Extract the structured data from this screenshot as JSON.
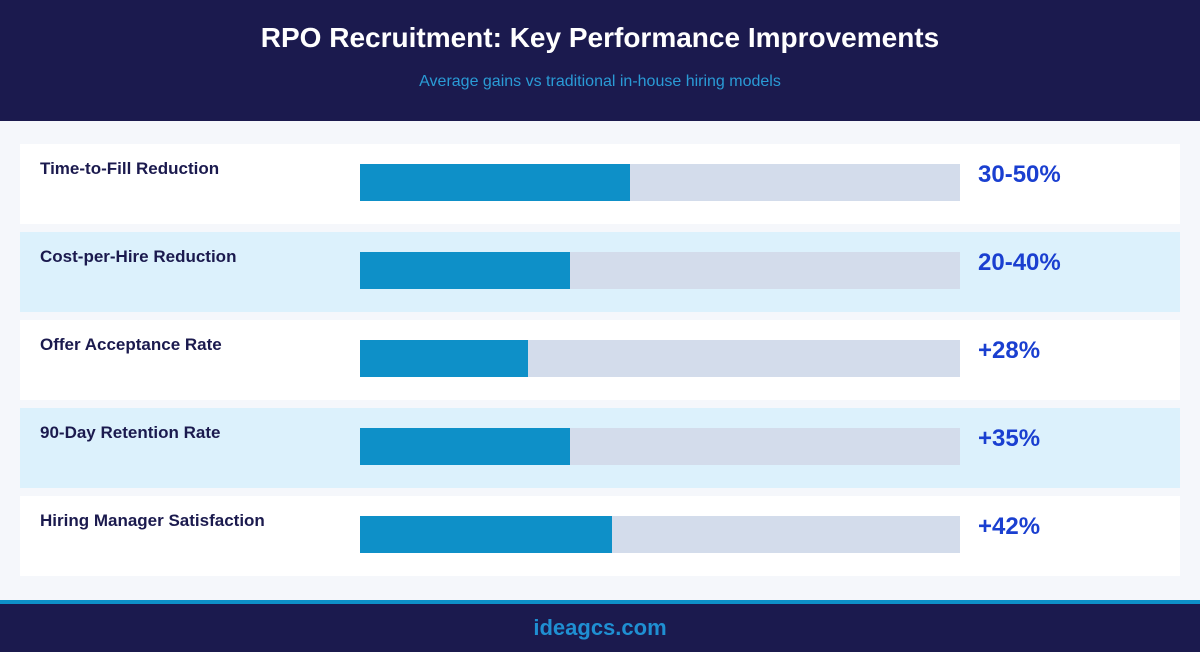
{
  "header": {
    "title": "RPO Recruitment: Key Performance Improvements",
    "subtitle": "Average gains vs traditional in-house hiring models"
  },
  "chart_data": {
    "type": "bar",
    "title": "RPO Recruitment: Key Performance Improvements",
    "subtitle": "Average gains vs traditional in-house hiring models",
    "categories": [
      "Time-to-Fill Reduction",
      "Cost-per-Hire Reduction",
      "Offer Acceptance Rate",
      "90-Day Retention Rate",
      "Hiring Manager Satisfaction"
    ],
    "values": [
      45,
      35,
      28,
      35,
      42
    ],
    "value_labels": [
      "30-50%",
      "20-40%",
      "+28%",
      "+35%",
      "+42%"
    ],
    "xlim": [
      0,
      100
    ],
    "orientation": "horizontal",
    "colors": {
      "fill": "#0e90c8",
      "track": "#d3dceb",
      "value_text": "#1a3fd0"
    }
  },
  "footer": {
    "text": "ideagcs.com"
  }
}
